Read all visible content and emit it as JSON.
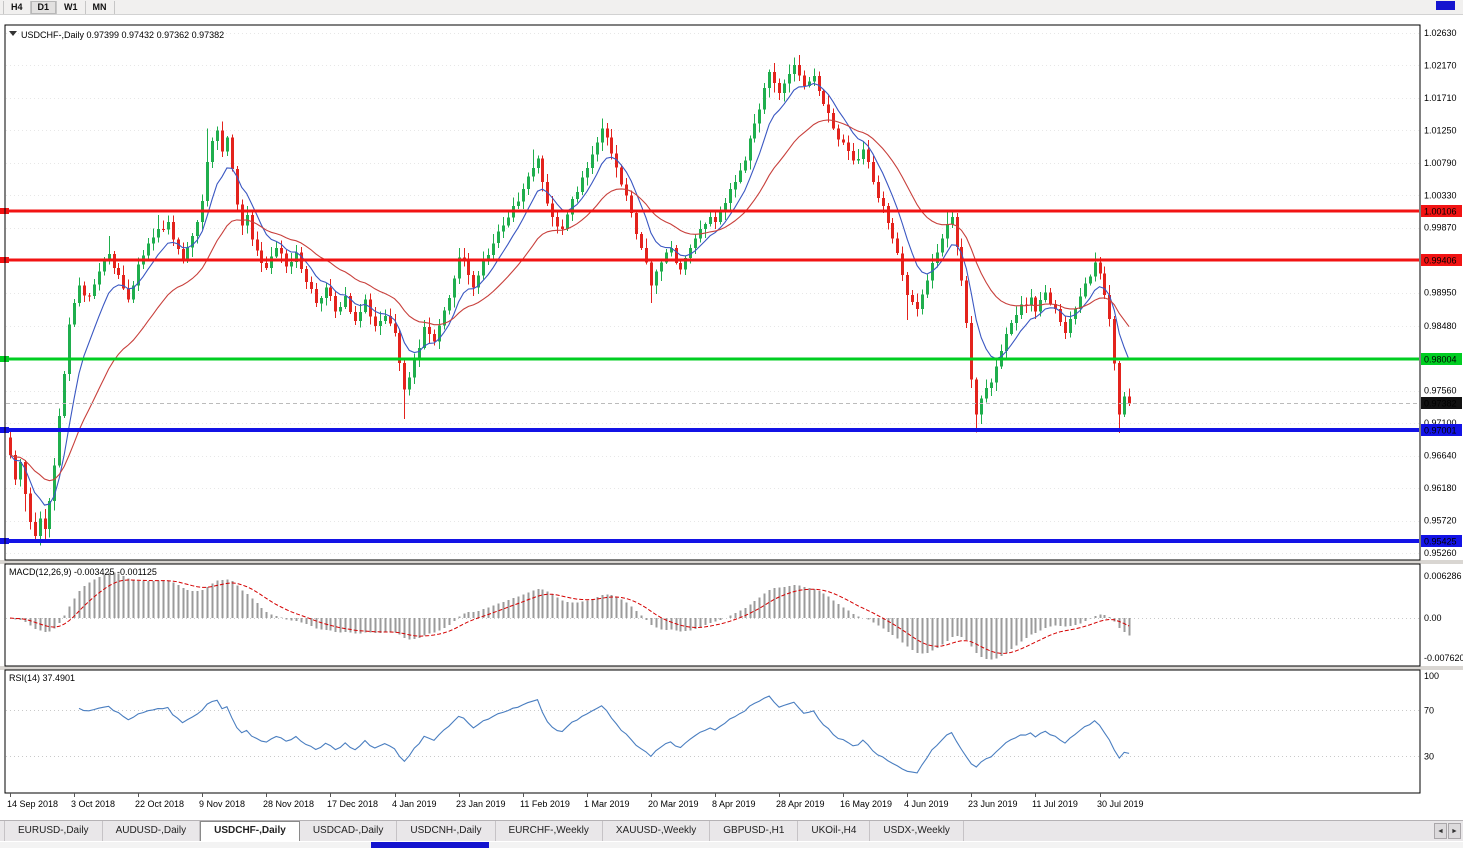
{
  "toolbar": {
    "timeframes": [
      "H4",
      "D1",
      "W1",
      "MN"
    ],
    "active": "D1"
  },
  "icons": {
    "symbol_dropdown": "▼",
    "tab_scroll_left": "◄",
    "tab_scroll_right": "►"
  },
  "tabs": {
    "items": [
      "EURUSD-,Daily",
      "AUDUSD-,Daily",
      "USDCHF-,Daily",
      "USDCAD-,Daily",
      "USDCNH-,Daily",
      "EURCHF-,Weekly",
      "XAUUSD-,Weekly",
      "GBPUSD-,H1",
      "UKOil-,H4",
      "USDX-,Weekly"
    ],
    "active_index": 2
  },
  "chart_data": {
    "type": "candlestick",
    "title": {
      "symbol_timeframe": "USDCHF-,Daily",
      "ohlc": "0.97399 0.97432 0.97362 0.97382"
    },
    "visible_price_range": [
      0.9526,
      1.0263
    ],
    "price_axis": {
      "ticks": [
        "1.02630",
        "1.02170",
        "1.01710",
        "1.01250",
        "1.00790",
        "1.00330",
        "0.99870",
        "0.98950",
        "0.98480",
        "0.97560",
        "0.97100",
        "0.96640",
        "0.96180",
        "0.95720",
        "0.95260"
      ]
    },
    "x_axis": {
      "labels": [
        "14 Sep 2018",
        "3 Oct 2018",
        "22 Oct 2018",
        "9 Nov 2018",
        "28 Nov 2018",
        "17 Dec 2018",
        "4 Jan 2019",
        "23 Jan 2019",
        "11 Feb 2019",
        "1 Mar 2019",
        "20 Mar 2019",
        "8 Apr 2019",
        "28 Apr 2019",
        "16 May 2019",
        "4 Jun 2019",
        "23 Jun 2019",
        "11 Jul 2019",
        "30 Jul 2019"
      ],
      "bars_per_label": 13
    },
    "levels": [
      {
        "price": 1.00106,
        "label": "1.00106",
        "color": "#f21313",
        "width": 3
      },
      {
        "price": 0.99406,
        "label": "0.99406",
        "color": "#f21313",
        "width": 3
      },
      {
        "price": 0.98004,
        "label": "0.98004",
        "color": "#00ce22",
        "width": 3
      },
      {
        "price": 0.97001,
        "label": "0.97001",
        "color": "#1313e6",
        "width": 4
      },
      {
        "price": 0.95425,
        "label": "0.95425",
        "color": "#1313e6",
        "width": 4
      }
    ],
    "current_price": {
      "value": 0.97382,
      "label": "0.97382"
    },
    "colors": {
      "bull": "#1fae4d",
      "bear": "#e3231d",
      "ma_fast": "#3a57c2",
      "ma_slow": "#c8403c",
      "macd_histogram": "#9b9b9b",
      "macd_signal": "#d40000",
      "rsi": "#4a7ec0",
      "current_badge": "#111111"
    },
    "candles": {
      "count": 228,
      "first_open": 0.969,
      "close_keypoints": [
        [
          0,
          0.9665
        ],
        [
          1,
          0.963
        ],
        [
          2,
          0.9655
        ],
        [
          3,
          0.961
        ],
        [
          4,
          0.957
        ],
        [
          5,
          0.955
        ],
        [
          6,
          0.9575
        ],
        [
          7,
          0.956
        ],
        [
          8,
          0.96
        ],
        [
          9,
          0.965
        ],
        [
          10,
          0.972
        ],
        [
          11,
          0.978
        ],
        [
          12,
          0.985
        ],
        [
          13,
          0.988
        ],
        [
          14,
          0.9905
        ],
        [
          16,
          0.989
        ],
        [
          18,
          0.9925
        ],
        [
          20,
          0.995
        ],
        [
          22,
          0.992
        ],
        [
          24,
          0.9885
        ],
        [
          25,
          0.9905
        ],
        [
          26,
          0.9935
        ],
        [
          28,
          0.9965
        ],
        [
          30,
          0.9985
        ],
        [
          32,
          0.9995
        ],
        [
          33,
          0.997
        ],
        [
          35,
          0.994
        ],
        [
          37,
          0.9975
        ],
        [
          38,
          0.9995
        ],
        [
          39,
          1.0025
        ],
        [
          40,
          1.008
        ],
        [
          41,
          1.011
        ],
        [
          42,
          1.0125
        ],
        [
          43,
          1.0095
        ],
        [
          44,
          1.0115
        ],
        [
          45,
          1.007
        ],
        [
          46,
          1.002
        ],
        [
          47,
          0.999
        ],
        [
          48,
          1.0005
        ],
        [
          49,
          0.997
        ],
        [
          50,
          0.9955
        ],
        [
          52,
          0.993
        ],
        [
          54,
          0.9958
        ],
        [
          56,
          0.9932
        ],
        [
          58,
          0.9952
        ],
        [
          60,
          0.991
        ],
        [
          62,
          0.988
        ],
        [
          64,
          0.9902
        ],
        [
          65,
          0.989
        ],
        [
          66,
          0.9868
        ],
        [
          68,
          0.989
        ],
        [
          70,
          0.9855
        ],
        [
          72,
          0.9885
        ],
        [
          74,
          0.9848
        ],
        [
          76,
          0.9862
        ],
        [
          78,
          0.9838
        ],
        [
          79,
          0.9795
        ],
        [
          80,
          0.9758
        ],
        [
          81,
          0.9775
        ],
        [
          82,
          0.98
        ],
        [
          84,
          0.9846
        ],
        [
          86,
          0.9826
        ],
        [
          88,
          0.987
        ],
        [
          90,
          0.9915
        ],
        [
          91,
          0.9945
        ],
        [
          93,
          0.992
        ],
        [
          94,
          0.9902
        ],
        [
          96,
          0.994
        ],
        [
          98,
          0.9965
        ],
        [
          100,
          0.999
        ],
        [
          102,
          1.0018
        ],
        [
          104,
          1.0042
        ],
        [
          106,
          1.0072
        ],
        [
          107,
          1.0085
        ],
        [
          108,
          1.0052
        ],
        [
          110,
          1.0002
        ],
        [
          112,
          0.9985
        ],
        [
          114,
          1.0028
        ],
        [
          116,
          1.0058
        ],
        [
          117,
          1.0072
        ],
        [
          119,
          1.0108
        ],
        [
          120,
          1.0128
        ],
        [
          122,
          1.0092
        ],
        [
          124,
          1.0048
        ],
        [
          126,
          1.0008
        ],
        [
          128,
          0.9958
        ],
        [
          130,
          0.9905
        ],
        [
          132,
          0.9938
        ],
        [
          134,
          0.9958
        ],
        [
          136,
          0.9928
        ],
        [
          138,
          0.9958
        ],
        [
          140,
          0.9985
        ],
        [
          142,
          1.0002
        ],
        [
          143,
          0.9995
        ],
        [
          145,
          1.0022
        ],
        [
          147,
          1.0052
        ],
        [
          149,
          1.0082
        ],
        [
          151,
          1.0135
        ],
        [
          153,
          1.0185
        ],
        [
          154,
          1.0208
        ],
        [
          155,
          1.0192
        ],
        [
          156,
          1.0178
        ],
        [
          158,
          1.0205
        ],
        [
          159,
          1.0218
        ],
        [
          161,
          1.0188
        ],
        [
          163,
          1.0202
        ],
        [
          165,
          1.0162
        ],
        [
          167,
          1.0128
        ],
        [
          169,
          1.0108
        ],
        [
          171,
          1.0082
        ],
        [
          173,
          1.0098
        ],
        [
          175,
          1.0052
        ],
        [
          177,
          1.0018
        ],
        [
          179,
          0.9972
        ],
        [
          181,
          0.992
        ],
        [
          182,
          0.9892
        ],
        [
          184,
          0.9872
        ],
        [
          186,
          0.9912
        ],
        [
          188,
          0.9952
        ],
        [
          190,
          0.9992
        ],
        [
          191,
          1.0002
        ],
        [
          192,
          0.996
        ],
        [
          193,
          0.9912
        ],
        [
          194,
          0.9852
        ],
        [
          195,
          0.9772
        ],
        [
          196,
          0.9722
        ],
        [
          197,
          0.9745
        ],
        [
          199,
          0.9768
        ],
        [
          201,
          0.9812
        ],
        [
          203,
          0.9852
        ],
        [
          205,
          0.9878
        ],
        [
          207,
          0.9888
        ],
        [
          208,
          0.9868
        ],
        [
          210,
          0.9895
        ],
        [
          212,
          0.9872
        ],
        [
          214,
          0.9838
        ],
        [
          216,
          0.9872
        ],
        [
          218,
          0.9908
        ],
        [
          220,
          0.9938
        ],
        [
          221,
          0.9922
        ],
        [
          222,
          0.9892
        ],
        [
          223,
          0.9858
        ],
        [
          224,
          0.9795
        ],
        [
          225,
          0.9722
        ],
        [
          226,
          0.9748
        ],
        [
          227,
          0.97382
        ]
      ],
      "spikes": [
        {
          "i": 3,
          "l": 0.9585
        },
        {
          "i": 5,
          "l": 0.9542
        },
        {
          "i": 7,
          "l": 0.9545
        },
        {
          "i": 20,
          "h": 0.9975
        },
        {
          "i": 30,
          "h": 1.0005
        },
        {
          "i": 40,
          "h": 1.0128
        },
        {
          "i": 42,
          "h": 1.013
        },
        {
          "i": 80,
          "l": 0.9716
        },
        {
          "i": 106,
          "h": 1.0098
        },
        {
          "i": 120,
          "h": 1.0142
        },
        {
          "i": 130,
          "l": 0.988
        },
        {
          "i": 159,
          "h": 1.0228
        },
        {
          "i": 182,
          "l": 0.9856
        },
        {
          "i": 190,
          "h": 1.001
        },
        {
          "i": 196,
          "l": 0.9697
        },
        {
          "i": 220,
          "h": 0.9952
        },
        {
          "i": 225,
          "l": 0.9696
        }
      ]
    },
    "indicators": {
      "macd": {
        "label": "MACD(12,26,9)",
        "values_text": "-0.003425 -0.001125",
        "fast": 12,
        "slow": 26,
        "signal": 9,
        "axis": {
          "top": "0.006286",
          "zero": "0.00",
          "bottom": "-0.007620"
        }
      },
      "rsi": {
        "label": "RSI(14)",
        "value_text": "37.4901",
        "period": 14,
        "axis": [
          "100",
          "70",
          "30"
        ],
        "guides": [
          70,
          30
        ]
      }
    }
  }
}
